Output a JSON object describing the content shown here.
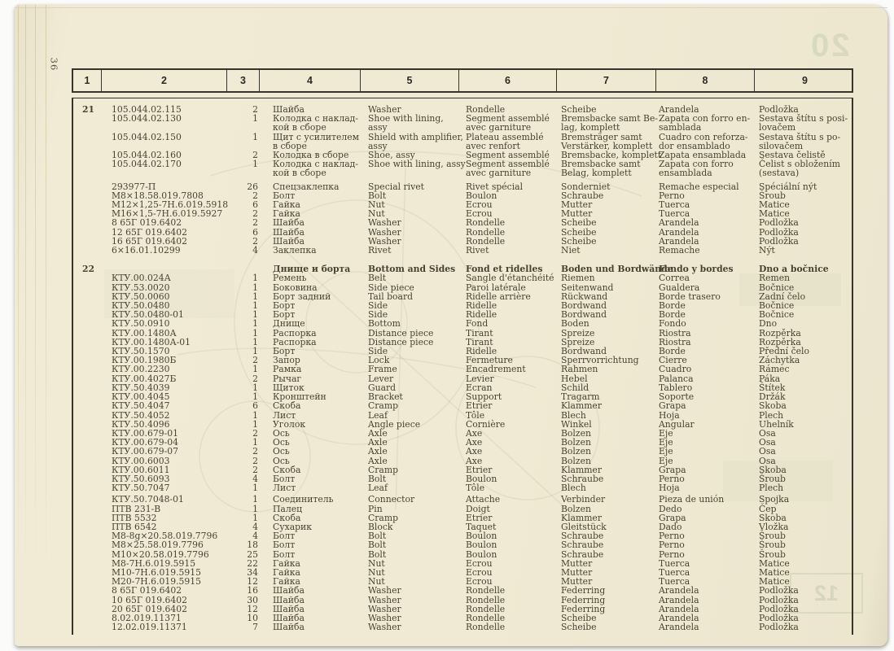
{
  "page": {
    "page_number": "36",
    "ghost_top_right": "20",
    "ghost_bottom_right": "12"
  },
  "table": {
    "column_headers": [
      "1",
      "2",
      "3",
      "4",
      "5",
      "6",
      "7",
      "8",
      "9"
    ],
    "sections": [
      {
        "item": "21",
        "title": null,
        "rows": [
          {
            "part": "105.044.02.115",
            "qty": "2",
            "ru": "Шайба",
            "en": "Washer",
            "fr": "Rondelle",
            "de": "Scheibe",
            "es": "Arandela",
            "cs": "Podložka"
          },
          {
            "part": "105.044.02.130",
            "qty": "1",
            "ru": "Колодка с наклад-\nкой в сборе",
            "en": "Shoe with lining,\nassy",
            "fr": "Segment assemblé\navec garniture",
            "de": "Bremsbacke samt Be-\nlag, komplett",
            "es": "Zapata con forro en-\nsamblada",
            "cs": "Sestava štítu s posi-\nlovačem"
          },
          {
            "part": "105.044.02.150",
            "qty": "1",
            "ru": "Щит с усилителем\nв сборе",
            "en": "Shield with amplifier,\nassy",
            "fr": "Plateau assemblé\navec renfort",
            "de": "Bremsträger samt\nVerstärker, komplett",
            "es": "Cuadro con reforza-\ndor ensamblado",
            "cs": "Sestava štítu s po-\nsilovačem"
          },
          {
            "part": "105.044.02.160",
            "qty": "2",
            "ru": "Колодка в сборе",
            "en": "Shoe, assy",
            "fr": "Segment assemblé",
            "de": "Bremsbacke, komplett",
            "es": "Zapata ensamblada",
            "cs": "Sestava čelistě"
          },
          {
            "part": "105.044.02.170",
            "qty": "1",
            "ru": "Колодка с наклад-\nкой в сборе",
            "en": "Shoe with lining, assy",
            "fr": "Segment assemblé\navec garniture",
            "de": "Bremsbacke samt\nBelag, komplett",
            "es": "Zapata con forro\nensamblada",
            "cs": "Čelist s obložením\n(sestava)"
          },
          {
            "gap_before": true,
            "part": "293977-П",
            "qty": "26",
            "ru": "Спецзаклепка",
            "en": "Special rivet",
            "fr": "Rivet spécial",
            "de": "Sonderniet",
            "es": "Remache especial",
            "cs": "Spéciální nýt"
          },
          {
            "part": "М8×18.58.019.7808",
            "qty": "2",
            "ru": "Болт",
            "en": "Bolt",
            "fr": "Boulon",
            "de": "Schraube",
            "es": "Perno",
            "cs": "Šroub"
          },
          {
            "part": "М12×1,25-7Н.6.019.5918",
            "qty": "6",
            "ru": "Гайка",
            "en": "Nut",
            "fr": "Ecrou",
            "de": "Mutter",
            "es": "Tuerca",
            "cs": "Matice"
          },
          {
            "part": "М16×1,5-7Н.6.019.5927",
            "qty": "2",
            "ru": "Гайка",
            "en": "Nut",
            "fr": "Ecrou",
            "de": "Mutter",
            "es": "Tuerca",
            "cs": "Matice"
          },
          {
            "part": "8 65Г 019.6402",
            "qty": "2",
            "ru": "Шайба",
            "en": "Washer",
            "fr": "Rondelle",
            "de": "Scheibe",
            "es": "Arandela",
            "cs": "Podložka"
          },
          {
            "part": "12 65Г 019.6402",
            "qty": "6",
            "ru": "Шайба",
            "en": "Washer",
            "fr": "Rondelle",
            "de": "Scheibe",
            "es": "Arandela",
            "cs": "Podložka"
          },
          {
            "part": "16 65Г 019.6402",
            "qty": "2",
            "ru": "Шайба",
            "en": "Washer",
            "fr": "Rondelle",
            "de": "Scheibe",
            "es": "Arandela",
            "cs": "Podložka"
          },
          {
            "part": "6×16.01.10299",
            "qty": "4",
            "ru": "Заклепка",
            "en": "Rivet",
            "fr": "Rivet",
            "de": "Niet",
            "es": "Remache",
            "cs": "Nýt"
          }
        ]
      },
      {
        "item": "22",
        "title": {
          "ru": "Днище и борта",
          "en": "Bottom and Sides",
          "fr": "Fond et ridelles",
          "de": "Boden und Bordwände",
          "es": "Fondo y bordes",
          "cs": "Dno a bočnice"
        },
        "rows": [
          {
            "part": "КТУ.00.024А",
            "qty": "1",
            "ru": "Ремень",
            "en": "Belt",
            "fr": "Sangle d'étanchéité",
            "de": "Riemen",
            "es": "Correa",
            "cs": "Remen"
          },
          {
            "part": "КТУ.53.0020",
            "qty": "1",
            "ru": "Боковина",
            "en": "Side piece",
            "fr": "Paroi latérale",
            "de": "Seitenwand",
            "es": "Gualdera",
            "cs": "Bočnice"
          },
          {
            "part": "КТУ.50.0060",
            "qty": "1",
            "ru": "Борт задний",
            "en": "Tail board",
            "fr": "Ridelle arrière",
            "de": "Rückwand",
            "es": "Borde trasero",
            "cs": "Zadní čelo"
          },
          {
            "part": "КТУ.50.0480",
            "qty": "1",
            "ru": "Борт",
            "en": "Side",
            "fr": "Ridelle",
            "de": "Bordwand",
            "es": "Borde",
            "cs": "Bočnice"
          },
          {
            "part": "КТУ.50.0480-01",
            "qty": "1",
            "ru": "Борт",
            "en": "Side",
            "fr": "Ridelle",
            "de": "Bordwand",
            "es": "Borde",
            "cs": "Bočnice"
          },
          {
            "part": "КТУ.50.0910",
            "qty": "1",
            "ru": "Днище",
            "en": "Bottom",
            "fr": "Fond",
            "de": "Boden",
            "es": "Fondo",
            "cs": "Dno"
          },
          {
            "part": "КТУ.00.1480А",
            "qty": "1",
            "ru": "Распорка",
            "en": "Distance piece",
            "fr": "Tirant",
            "de": "Spreize",
            "es": "Riostra",
            "cs": "Rozpěrka"
          },
          {
            "part": "КТУ.00.1480А-01",
            "qty": "1",
            "ru": "Распорка",
            "en": "Distance piece",
            "fr": "Tirant",
            "de": "Spreize",
            "es": "Riostra",
            "cs": "Rozpěrka"
          },
          {
            "part": "КТУ.50.1570",
            "qty": "1",
            "ru": "Борт",
            "en": "Side",
            "fr": "Ridelle",
            "de": "Bordwand",
            "es": "Borde",
            "cs": "Přední čelo"
          },
          {
            "part": "КТУ.00.1980Б",
            "qty": "2",
            "ru": "Запор",
            "en": "Lock",
            "fr": "Fermeture",
            "de": "Sperrvorrichtung",
            "es": "Cierre",
            "cs": "Záchytka"
          },
          {
            "part": "КТУ.00.2230",
            "qty": "1",
            "ru": "Рамка",
            "en": "Frame",
            "fr": "Encadrement",
            "de": "Rahmen",
            "es": "Cuadro",
            "cs": "Rámec"
          },
          {
            "part": "КТУ.00.4027Б",
            "qty": "2",
            "ru": "Рычаг",
            "en": "Lever",
            "fr": "Levier",
            "de": "Hebel",
            "es": "Palanca",
            "cs": "Páka"
          },
          {
            "part": "КТУ.50.4039",
            "qty": "1",
            "ru": "Щиток",
            "en": "Guard",
            "fr": "Ecran",
            "de": "Schild",
            "es": "Tablero",
            "cs": "Štítek"
          },
          {
            "part": "КТУ.00.4045",
            "qty": "1",
            "ru": "Кронштейн",
            "en": "Bracket",
            "fr": "Support",
            "de": "Tragarm",
            "es": "Soporte",
            "cs": "Držák"
          },
          {
            "part": "КТУ.50.4047",
            "qty": "6",
            "ru": "Скоба",
            "en": "Cramp",
            "fr": "Etrier",
            "de": "Klammer",
            "es": "Grapa",
            "cs": "Skoba"
          },
          {
            "part": "КТУ.50.4052",
            "qty": "1",
            "ru": "Лист",
            "en": "Leaf",
            "fr": "Tôle",
            "de": "Blech",
            "es": "Hoja",
            "cs": "Plech"
          },
          {
            "part": "КТУ.50.4096",
            "qty": "1",
            "ru": "Уголок",
            "en": "Angle piece",
            "fr": "Cornière",
            "de": "Winkel",
            "es": "Angular",
            "cs": "Uhelník"
          },
          {
            "part": "КТУ.00.679-01",
            "qty": "2",
            "ru": "Ось",
            "en": "Axle",
            "fr": "Axe",
            "de": "Bolzen",
            "es": "Eje",
            "cs": "Osa"
          },
          {
            "part": "КТУ.00.679-04",
            "qty": "1",
            "ru": "Ось",
            "en": "Axle",
            "fr": "Axe",
            "de": "Bolzen",
            "es": "Eje",
            "cs": "Osa"
          },
          {
            "part": "КТУ.00.679-07",
            "qty": "2",
            "ru": "Ось",
            "en": "Axle",
            "fr": "Axe",
            "de": "Bolzen",
            "es": "Eje",
            "cs": "Osa"
          },
          {
            "part": "КТУ.00.6003",
            "qty": "2",
            "ru": "Ось",
            "en": "Axle",
            "fr": "Axe",
            "de": "Bolzen",
            "es": "Eje",
            "cs": "Osa"
          },
          {
            "part": "КТУ.00.6011",
            "qty": "2",
            "ru": "Скоба",
            "en": "Cramp",
            "fr": "Etrier",
            "de": "Klammer",
            "es": "Grapa",
            "cs": "Skoba"
          },
          {
            "part": "КТУ.50.6093",
            "qty": "4",
            "ru": "Болт",
            "en": "Bolt",
            "fr": "Boulon",
            "de": "Schraube",
            "es": "Perno",
            "cs": "Šroub"
          },
          {
            "part": "КТУ.50.7047",
            "qty": "1",
            "ru": "Лист",
            "en": "Leaf",
            "fr": "Tôle",
            "de": "Blech",
            "es": "Hoja",
            "cs": "Plech"
          },
          {
            "gap_small": true,
            "part": "КТУ.50.7048-01",
            "qty": "1",
            "ru": "Соединитель",
            "en": "Connector",
            "fr": "Attache",
            "de": "Verbinder",
            "es": "Pieza de unión",
            "cs": "Spojka"
          },
          {
            "part": "ПТВ 231-В",
            "qty": "1",
            "ru": "Палец",
            "en": "Pin",
            "fr": "Doigt",
            "de": "Bolzen",
            "es": "Dedo",
            "cs": "Čep"
          },
          {
            "part": "ПТВ 5532",
            "qty": "1",
            "ru": "Скоба",
            "en": "Cramp",
            "fr": "Etrier",
            "de": "Klammer",
            "es": "Grapa",
            "cs": "Skoba"
          },
          {
            "part": "ПТВ 6542",
            "qty": "4",
            "ru": "Сухарик",
            "en": "Block",
            "fr": "Taquet",
            "de": "Gleitstück",
            "es": "Dado",
            "cs": "Vložka"
          },
          {
            "part": "М8-8g×20.58.019.7796",
            "qty": "4",
            "ru": "Болт",
            "en": "Bolt",
            "fr": "Boulon",
            "de": "Schraube",
            "es": "Perno",
            "cs": "Šroub"
          },
          {
            "part": "М8×25.58.019.7796",
            "qty": "18",
            "ru": "Болт",
            "en": "Bolt",
            "fr": "Boulon",
            "de": "Schraube",
            "es": "Perno",
            "cs": "Šroub"
          },
          {
            "part": "М10×20.58.019.7796",
            "qty": "25",
            "ru": "Болт",
            "en": "Bolt",
            "fr": "Boulon",
            "de": "Schraube",
            "es": "Perno",
            "cs": "Šroub"
          },
          {
            "part": "М8-7Н.6.019.5915",
            "qty": "22",
            "ru": "Гайка",
            "en": "Nut",
            "fr": "Ecrou",
            "de": "Mutter",
            "es": "Tuerca",
            "cs": "Matice"
          },
          {
            "part": "М10-7Н.6.019.5915",
            "qty": "34",
            "ru": "Гайка",
            "en": "Nut",
            "fr": "Ecrou",
            "de": "Mutter",
            "es": "Tuerca",
            "cs": "Matice"
          },
          {
            "part": "М20-7Н.6.019.5915",
            "qty": "12",
            "ru": "Гайка",
            "en": "Nut",
            "fr": "Ecrou",
            "de": "Mutter",
            "es": "Tuerca",
            "cs": "Matice"
          },
          {
            "part": "8 65Г 019.6402",
            "qty": "16",
            "ru": "Шайба",
            "en": "Washer",
            "fr": "Rondelle",
            "de": "Federring",
            "es": "Arandela",
            "cs": "Podložka"
          },
          {
            "part": "10 65Г 019.6402",
            "qty": "30",
            "ru": "Шайба",
            "en": "Washer",
            "fr": "Rondelle",
            "de": "Federring",
            "es": "Arandela",
            "cs": "Podložka"
          },
          {
            "part": "20 65Г 019.6402",
            "qty": "12",
            "ru": "Шайба",
            "en": "Washer",
            "fr": "Rondelle",
            "de": "Federring",
            "es": "Arandela",
            "cs": "Podložka"
          },
          {
            "part": "8.02.019.11371",
            "qty": "10",
            "ru": "Шайба",
            "en": "Washer",
            "fr": "Rondelle",
            "de": "Scheibe",
            "es": "Arandela",
            "cs": "Podložka"
          },
          {
            "part": "12.02.019.11371",
            "qty": "7",
            "ru": "Шайба",
            "en": "Washer",
            "fr": "Rondelle",
            "de": "Scheibe",
            "es": "Arandela",
            "cs": "Podložka"
          }
        ]
      }
    ]
  }
}
